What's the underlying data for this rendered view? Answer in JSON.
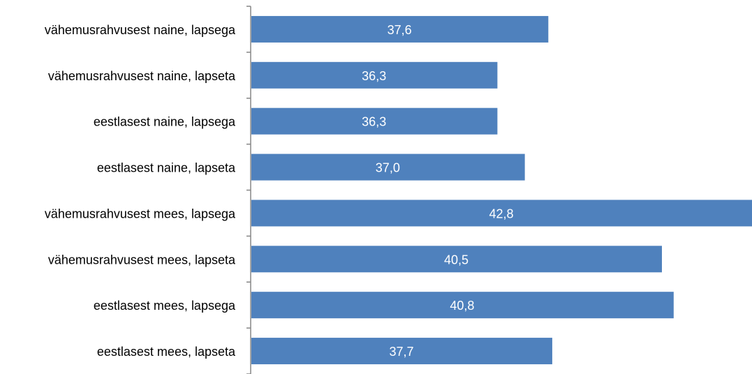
{
  "chart_data": {
    "type": "bar",
    "orientation": "horizontal",
    "categories": [
      "vähemusrahvusest naine, lapsega",
      "vähemusrahvusest naine, lapseta",
      "eestlasest naine, lapsega",
      "eestlasest naine, lapseta",
      "vähemusrahvusest mees, lapsega",
      "vähemusrahvusest mees, lapseta",
      "eestlasest mees, lapsega",
      "eestlasest mees, lapseta"
    ],
    "values": [
      37.6,
      36.3,
      36.3,
      37.0,
      42.8,
      40.5,
      40.8,
      37.7
    ],
    "value_labels": [
      "37,6",
      "36,3",
      "36,3",
      "37,0",
      "42,8",
      "40,5",
      "40,8",
      "37,7"
    ],
    "xlim": [
      30,
      42.8
    ],
    "x_axis_visible": false,
    "grid": false,
    "legend": "none",
    "bar_color": "#4f81bd",
    "axis_color": "#868686",
    "label_color": "#000000",
    "data_label_color": "#ffffff"
  }
}
